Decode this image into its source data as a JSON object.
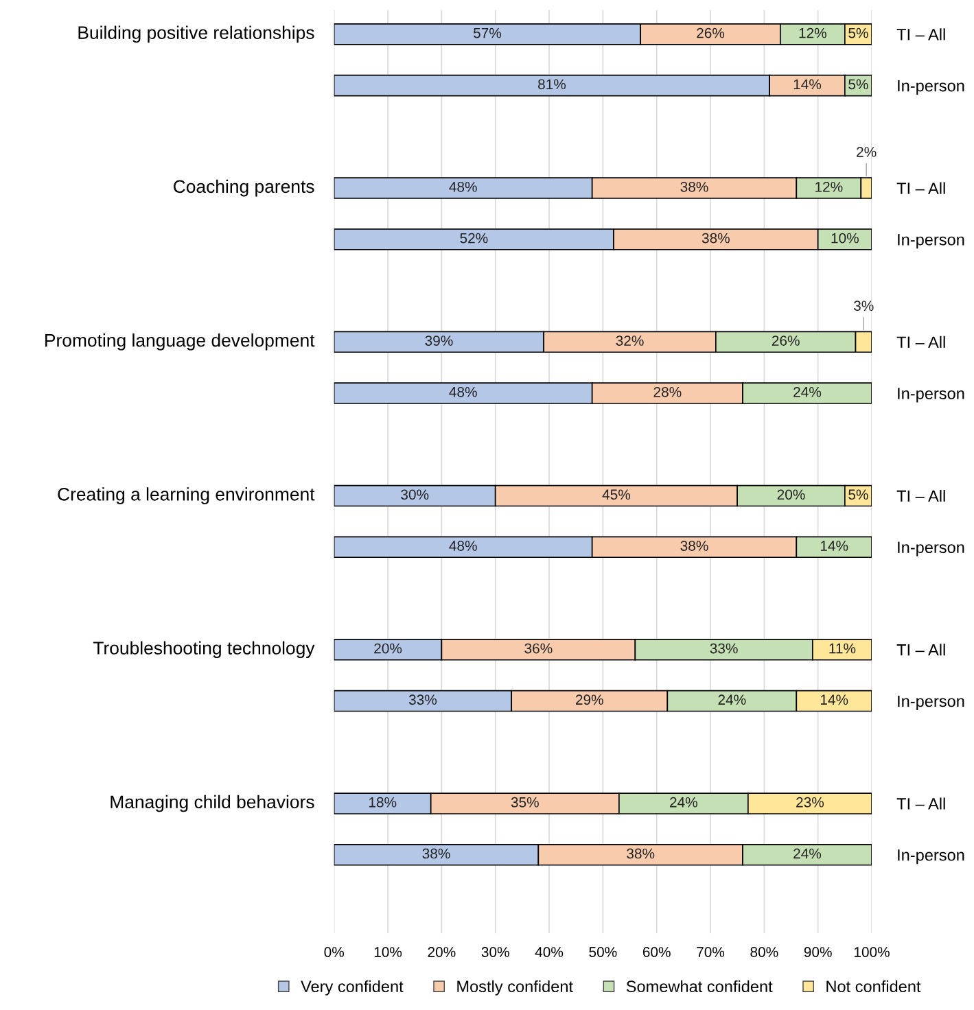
{
  "chart_data": {
    "type": "bar",
    "orientation": "horizontal",
    "stacked": true,
    "categories": [
      "TI – All",
      "In-person",
      null,
      "TI – All",
      "In-person",
      null,
      "TI – All",
      "In-person",
      null,
      "TI – All",
      "In-person",
      null,
      "TI – All",
      "In-person",
      null,
      "TI – All",
      "In-person"
    ],
    "annotations": [
      "Building positive relationships",
      "Coaching parents",
      "Promoting language development",
      "Creating a learning environment",
      "Troubleshooting technology",
      "Managing child behaviors"
    ],
    "series": [
      {
        "name": "Very confident",
        "color": "#b4c7e7",
        "values": [
          57,
          81,
          null,
          48,
          52,
          null,
          39,
          48,
          null,
          30,
          48,
          null,
          20,
          33,
          null,
          18,
          38
        ],
        "value_labels": [
          "57%",
          "81%",
          null,
          "48%",
          "52%",
          null,
          "39%",
          "48%",
          null,
          "30%",
          "48%",
          null,
          "20%",
          "33%",
          null,
          "18%",
          "38%"
        ]
      },
      {
        "name": "Mostly confident",
        "color": "#f8cbad",
        "values": [
          26,
          14,
          null,
          38,
          38,
          null,
          32,
          28,
          null,
          45,
          38,
          null,
          36,
          29,
          null,
          35,
          38
        ],
        "value_labels": [
          "26%",
          "14%",
          null,
          "38%",
          "38%",
          null,
          "32%",
          "28%",
          null,
          "45%",
          "38%",
          null,
          "36%",
          "29%",
          null,
          "35%",
          "38%"
        ]
      },
      {
        "name": "Somewhat confident",
        "color": "#c5e0b4",
        "values": [
          12,
          5,
          null,
          12,
          10,
          null,
          26,
          24,
          null,
          20,
          14,
          null,
          33,
          24,
          null,
          24,
          24
        ],
        "value_labels": [
          "12%",
          "5%",
          null,
          "12%",
          "10%",
          null,
          "26%",
          "24%",
          null,
          "20%",
          "14%",
          null,
          "33%",
          "24%",
          null,
          "24%",
          "24%"
        ]
      },
      {
        "name": "Not confident",
        "color": "#ffe699",
        "values": [
          5,
          null,
          null,
          2,
          null,
          null,
          3,
          null,
          null,
          5,
          null,
          null,
          11,
          14,
          null,
          23,
          null
        ],
        "value_labels": [
          "5%",
          null,
          null,
          "2%",
          null,
          null,
          "3%",
          null,
          null,
          "5%",
          null,
          null,
          "11%",
          "14%",
          null,
          "23%",
          null
        ]
      }
    ],
    "xlim": [
      0,
      100
    ],
    "xticks": [
      {
        "value": 0,
        "label": "0%"
      },
      {
        "value": 10,
        "label": "10%"
      },
      {
        "value": 20,
        "label": "20%"
      },
      {
        "value": 30,
        "label": "30%"
      },
      {
        "value": 40,
        "label": "40%"
      },
      {
        "value": 50,
        "label": "50%"
      },
      {
        "value": 60,
        "label": "60%"
      },
      {
        "value": 70,
        "label": "70%"
      },
      {
        "value": 80,
        "label": "80%"
      },
      {
        "value": 90,
        "label": "90%"
      },
      {
        "value": 100,
        "label": "100%"
      }
    ],
    "grid": "x",
    "legend": "bottom"
  }
}
